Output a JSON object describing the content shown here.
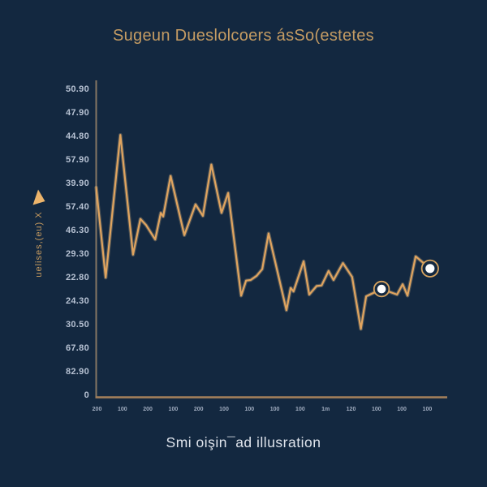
{
  "title": "Sugeun Dueslolcoers ásSo(estetes",
  "caption": "Smi oişin¯ad illusration",
  "y_axis": {
    "title": "uelises,(eu) X",
    "arrow_icon": "up-triangle",
    "labels": [
      "50.90",
      "47.90",
      "44.80",
      "57.90",
      "39.90",
      "57.40",
      "46.30",
      "29.30",
      "22.80",
      "24.30",
      "30.50",
      "67.80",
      "82.90",
      "0"
    ]
  },
  "x_axis": {
    "labels": [
      "200",
      "100",
      "200",
      "100",
      "200",
      "100",
      "100",
      "100",
      "100",
      "1m",
      "120",
      "100",
      "100",
      "100"
    ]
  },
  "colors": {
    "background": "#132840",
    "line": "#e0a45f",
    "line_glow": "#f3cb90",
    "title_text": "#c59c63",
    "caption_text": "#dfe4ec",
    "tick_text": "#b7c2d3",
    "y_axis_line": "#857663",
    "x_axis_line": "#a5805a",
    "marker_ring": "#d8a45f",
    "marker_center": "#fdfeff"
  },
  "chart_data": {
    "type": "line",
    "title": "Sugeun Dueslolcoers ásSo(estetes",
    "xlabel": "",
    "ylabel": "uelises,(eu) X",
    "ylim": [
      0,
      54.5
    ],
    "xlim": [
      0,
      100
    ],
    "grid": false,
    "legend": "none",
    "series": [
      {
        "name": "main",
        "x": [
          0.0,
          2.7,
          6.9,
          10.5,
          12.6,
          14.2,
          16.8,
          18.4,
          19.1,
          21.2,
          25.1,
          28.3,
          30.4,
          32.8,
          35.7,
          37.6,
          41.3,
          42.7,
          44.0,
          45.7,
          47.3,
          49.1,
          54.2,
          55.4,
          56.2,
          59.1,
          60.7,
          62.8,
          64.2,
          66.2,
          67.6,
          70.3,
          72.9,
          75.4,
          76.9,
          81.3,
          85.7,
          87.3,
          88.7,
          91.0,
          95.1
        ],
        "values": [
          34.7,
          19.8,
          43.4,
          23.6,
          29.5,
          28.5,
          26.1,
          30.5,
          29.9,
          36.6,
          26.8,
          31.9,
          30.0,
          38.5,
          30.5,
          33.8,
          16.8,
          19.3,
          19.4,
          20.1,
          21.2,
          27.1,
          14.4,
          18.1,
          17.5,
          22.5,
          17.0,
          18.4,
          18.5,
          20.9,
          19.4,
          22.2,
          19.9,
          11.3,
          16.7,
          17.9,
          17.0,
          18.7,
          16.8,
          23.3,
          21.3
        ]
      }
    ],
    "marker_point_indices": [
      35,
      40
    ],
    "y_tick_labels": [
      "50.90",
      "47.90",
      "44.80",
      "57.90",
      "39.90",
      "57.40",
      "46.30",
      "29.30",
      "22.80",
      "24.30",
      "30.50",
      "67.80",
      "82.90",
      "0"
    ],
    "x_tick_labels": [
      "200",
      "100",
      "200",
      "100",
      "200",
      "100",
      "100",
      "100",
      "100",
      "1m",
      "120",
      "100",
      "100",
      "100"
    ]
  }
}
